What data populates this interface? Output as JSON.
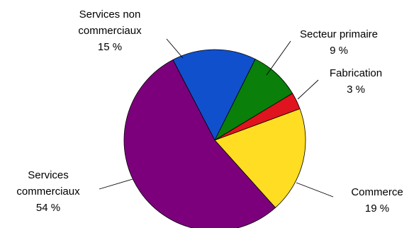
{
  "chart_data": {
    "type": "pie",
    "title": "",
    "unit": "%",
    "slices": [
      {
        "label_lines": [
          "Services non",
          "commerciaux"
        ],
        "value": 15,
        "value_label": "15 %",
        "color": "#1150CC"
      },
      {
        "label_lines": [
          "Secteur primaire"
        ],
        "value": 9,
        "value_label": "9 %",
        "color": "#0A7F0A"
      },
      {
        "label_lines": [
          "Fabrication"
        ],
        "value": 3,
        "value_label": "3 %",
        "color": "#E0141E"
      },
      {
        "label_lines": [
          "Commerce"
        ],
        "value": 19,
        "value_label": "19 %",
        "color": "#FFDD22"
      },
      {
        "label_lines": [
          "Services",
          "commerciaux"
        ],
        "value": 54,
        "value_label": "54 %",
        "color": "#7C007C"
      }
    ]
  }
}
